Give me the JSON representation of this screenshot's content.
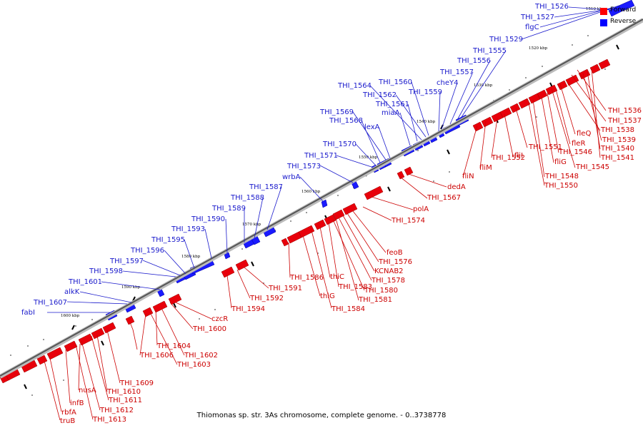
{
  "caption": "Thiomonas sp. str. 3As chromosome, complete genome. - 0..3738778",
  "legend": [
    {
      "label": "Forward",
      "color": "#ff0000"
    },
    {
      "label": "Reverse",
      "color": "#0000ff"
    }
  ],
  "colors": {
    "forward": "#e8000b",
    "reverse": "#1a1aff",
    "forward_text": "#cc0000",
    "reverse_text": "#1a1acc",
    "backbone": "#777777"
  },
  "ticks": [
    "1510 kbp",
    "1520 kbp",
    "1530 kbp",
    "1540 kbp",
    "1550 kbp",
    "1560 kbp",
    "1570 kbp",
    "1580 kbp",
    "1590 kbp",
    "1600 kbp"
  ],
  "forward_labels": [
    "THI_1536",
    "THI_1537",
    "THI_1538",
    "fleQ",
    "THI_1539",
    "fleR",
    "THI_1540",
    "THI_1546",
    "THI_1541",
    "fliG",
    "THI_1545",
    "THI_1548",
    "THI_1550",
    "THI_1551",
    "fliI",
    "THI_1552",
    "fliM",
    "fliN",
    "dedA",
    "THI_1567",
    "polA",
    "THI_1574",
    "feoB",
    "THI_1576",
    "KCNAB2",
    "THI_1578",
    "thiC",
    "THI_1580",
    "THI_1583",
    "THI_1581",
    "THI_1586",
    "thiG",
    "THI_1584",
    "THI_1591",
    "THI_1592",
    "THI_1594",
    "czcR",
    "THI_1600",
    "THI_1604",
    "THI_1602",
    "THI_1606",
    "THI_1603",
    "THI_1609",
    "THI_1610",
    "nusA",
    "THI_1611",
    "infB",
    "THI_1612",
    "rbfA",
    "THI_1613",
    "truB"
  ],
  "reverse_labels": [
    "THI_1526",
    "THI_1527",
    "flgC",
    "THI_1529",
    "THI_1555",
    "THI_1556",
    "THI_1557",
    "cheY4",
    "THI_1560",
    "THI_1559",
    "THI_1564",
    "THI_1562",
    "THI_1561",
    "miaA",
    "THI_1569",
    "THI_1568",
    "lexA",
    "THI_1570",
    "THI_1571",
    "THI_1573",
    "wrbA",
    "THI_1587",
    "THI_1588",
    "THI_1589",
    "THI_1590",
    "THI_1593",
    "THI_1595",
    "THI_1596",
    "THI_1597",
    "THI_1598",
    "THI_1601",
    "alkK",
    "THI_1607",
    "fabI"
  ]
}
